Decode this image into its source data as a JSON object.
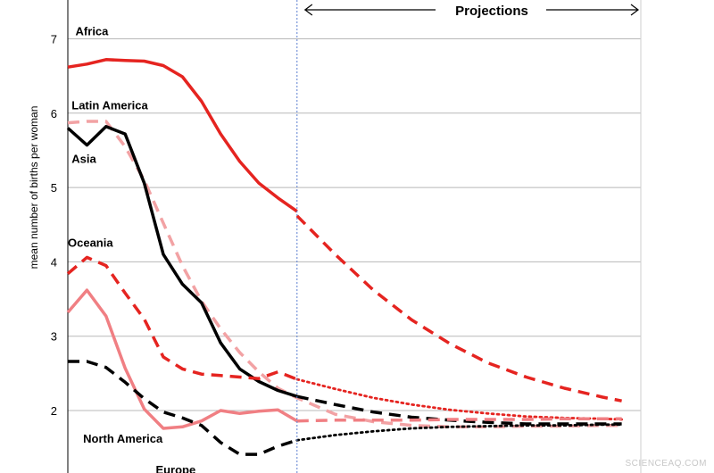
{
  "chart_data": {
    "type": "line",
    "ylabel": "mean number of births per woman",
    "ylim": [
      1.15,
      7.55
    ],
    "yticks": [
      2,
      3,
      4,
      5,
      6,
      7
    ],
    "xlim": [
      1950,
      2100
    ],
    "projection_start": 2010,
    "projections_label": "Projections",
    "grid": true,
    "series": [
      {
        "name": "Africa",
        "color": "#e52420",
        "dash": "solid",
        "points": [
          [
            1950,
            6.62
          ],
          [
            1955,
            6.66
          ],
          [
            1960,
            6.72
          ],
          [
            1965,
            6.71
          ],
          [
            1970,
            6.7
          ],
          [
            1975,
            6.64
          ],
          [
            1980,
            6.49
          ],
          [
            1985,
            6.16
          ],
          [
            1990,
            5.72
          ],
          [
            1995,
            5.35
          ],
          [
            2000,
            5.06
          ],
          [
            2005,
            4.86
          ],
          [
            2010,
            4.68
          ]
        ]
      },
      {
        "name": "Africa",
        "color": "#e52420",
        "dash": "dashed",
        "points": [
          [
            2010,
            4.62
          ],
          [
            2020,
            4.1
          ],
          [
            2030,
            3.62
          ],
          [
            2040,
            3.22
          ],
          [
            2050,
            2.9
          ],
          [
            2060,
            2.64
          ],
          [
            2070,
            2.45
          ],
          [
            2080,
            2.3
          ],
          [
            2090,
            2.18
          ],
          [
            2095,
            2.13
          ]
        ]
      },
      {
        "name": "Latin America",
        "color": "#f2a2a4",
        "dash": "dashed",
        "points": [
          [
            1950,
            5.87
          ],
          [
            1955,
            5.89
          ],
          [
            1960,
            5.89
          ],
          [
            1965,
            5.55
          ],
          [
            1970,
            5.1
          ],
          [
            1975,
            4.52
          ],
          [
            1980,
            3.95
          ],
          [
            1985,
            3.47
          ],
          [
            1990,
            3.1
          ],
          [
            1995,
            2.78
          ],
          [
            2000,
            2.52
          ],
          [
            2005,
            2.3
          ],
          [
            2010,
            2.17
          ],
          [
            2020,
            1.95
          ],
          [
            2030,
            1.85
          ],
          [
            2040,
            1.8
          ],
          [
            2050,
            1.78
          ],
          [
            2060,
            1.78
          ],
          [
            2070,
            1.79
          ],
          [
            2080,
            1.79
          ],
          [
            2090,
            1.8
          ],
          [
            2095,
            1.8
          ]
        ]
      },
      {
        "name": "Asia",
        "color": "#000000",
        "dash": "solid",
        "points": [
          [
            1950,
            5.8
          ],
          [
            1955,
            5.57
          ],
          [
            1960,
            5.82
          ],
          [
            1965,
            5.72
          ],
          [
            1970,
            5.06
          ],
          [
            1975,
            4.1
          ],
          [
            1980,
            3.7
          ],
          [
            1985,
            3.45
          ],
          [
            1990,
            2.91
          ],
          [
            1995,
            2.56
          ],
          [
            2000,
            2.39
          ],
          [
            2005,
            2.27
          ],
          [
            2010,
            2.19
          ]
        ]
      },
      {
        "name": "Asia",
        "color": "#000000",
        "dash": "dashed",
        "points": [
          [
            2010,
            2.19
          ],
          [
            2020,
            2.08
          ],
          [
            2030,
            1.98
          ],
          [
            2040,
            1.91
          ],
          [
            2050,
            1.87
          ],
          [
            2060,
            1.84
          ],
          [
            2070,
            1.82
          ],
          [
            2080,
            1.82
          ],
          [
            2090,
            1.82
          ],
          [
            2095,
            1.82
          ]
        ]
      },
      {
        "name": "Oceania",
        "color": "#e52420",
        "dash": "dashed",
        "points": [
          [
            1950,
            3.84
          ],
          [
            1955,
            4.06
          ],
          [
            1960,
            3.95
          ],
          [
            1965,
            3.58
          ],
          [
            1970,
            3.23
          ],
          [
            1975,
            2.72
          ],
          [
            1980,
            2.56
          ],
          [
            1985,
            2.49
          ],
          [
            1990,
            2.47
          ],
          [
            1995,
            2.45
          ],
          [
            2000,
            2.43
          ],
          [
            2005,
            2.52
          ],
          [
            2010,
            2.42
          ]
        ]
      },
      {
        "name": "Oceania",
        "color": "#e52420",
        "dash": "dotted",
        "points": [
          [
            2010,
            2.42
          ],
          [
            2020,
            2.29
          ],
          [
            2030,
            2.17
          ],
          [
            2040,
            2.08
          ],
          [
            2050,
            2.01
          ],
          [
            2060,
            1.96
          ],
          [
            2070,
            1.92
          ],
          [
            2080,
            1.9
          ],
          [
            2090,
            1.89
          ],
          [
            2095,
            1.88
          ]
        ]
      },
      {
        "name": "North America",
        "color": "#f07f83",
        "dash": "solid",
        "points": [
          [
            1950,
            3.32
          ],
          [
            1955,
            3.62
          ],
          [
            1960,
            3.27
          ],
          [
            1965,
            2.57
          ],
          [
            1970,
            2.02
          ],
          [
            1975,
            1.76
          ],
          [
            1980,
            1.78
          ],
          [
            1985,
            1.86
          ],
          [
            1990,
            2.0
          ],
          [
            1995,
            1.96
          ],
          [
            2000,
            1.99
          ],
          [
            2005,
            2.01
          ],
          [
            2010,
            1.86
          ]
        ]
      },
      {
        "name": "North America",
        "color": "#f07f83",
        "dash": "dashed",
        "points": [
          [
            2010,
            1.86
          ],
          [
            2020,
            1.87
          ],
          [
            2030,
            1.87
          ],
          [
            2040,
            1.87
          ],
          [
            2050,
            1.88
          ],
          [
            2060,
            1.88
          ],
          [
            2070,
            1.88
          ],
          [
            2080,
            1.89
          ],
          [
            2090,
            1.89
          ],
          [
            2095,
            1.89
          ]
        ]
      },
      {
        "name": "Europe",
        "color": "#000000",
        "dash": "dashed",
        "points": [
          [
            1950,
            2.66
          ],
          [
            1955,
            2.66
          ],
          [
            1960,
            2.58
          ],
          [
            1965,
            2.38
          ],
          [
            1970,
            2.16
          ],
          [
            1975,
            1.98
          ],
          [
            1980,
            1.9
          ],
          [
            1985,
            1.8
          ],
          [
            1990,
            1.57
          ],
          [
            1995,
            1.41
          ],
          [
            2000,
            1.41
          ],
          [
            2005,
            1.52
          ],
          [
            2010,
            1.6
          ]
        ]
      },
      {
        "name": "Europe",
        "color": "#000000",
        "dash": "dotted",
        "points": [
          [
            2010,
            1.6
          ],
          [
            2020,
            1.67
          ],
          [
            2030,
            1.72
          ],
          [
            2040,
            1.76
          ],
          [
            2050,
            1.78
          ],
          [
            2060,
            1.79
          ],
          [
            2070,
            1.8
          ],
          [
            2080,
            1.8
          ],
          [
            2090,
            1.81
          ],
          [
            2095,
            1.81
          ]
        ]
      }
    ],
    "labels": [
      {
        "text": "Africa",
        "x": 1952,
        "y": 7.05
      },
      {
        "text": "Latin America",
        "x": 1951,
        "y": 6.05
      },
      {
        "text": "Asia",
        "x": 1951,
        "y": 5.33
      },
      {
        "text": "Oceania",
        "x": 1950,
        "y": 4.2
      },
      {
        "text": "North America",
        "x": 1954,
        "y": 1.57
      },
      {
        "text": "Europe",
        "x": 1973,
        "y": 1.15
      }
    ]
  },
  "watermark": "SCIENCEAQ.COM"
}
